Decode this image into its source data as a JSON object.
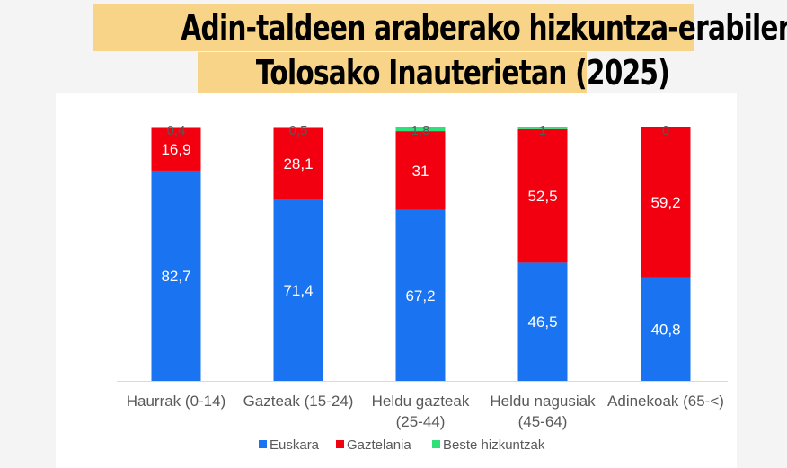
{
  "chart_data": {
    "type": "bar",
    "stacked": true,
    "title": [
      "Adin-taldeen araberako hizkuntza-erabilera",
      "Tolosako Inauterietan (2025)"
    ],
    "categories": [
      [
        "Haurrak (0-14)"
      ],
      [
        "Gazteak (15-24)"
      ],
      [
        "Heldu gazteak",
        "(25-44)"
      ],
      [
        "Heldu nagusiak",
        "(45-64)"
      ],
      [
        "Adinekoak (65-<)"
      ]
    ],
    "series": [
      {
        "name": "Euskara",
        "color": "#1a73f0",
        "values": [
          82.7,
          71.4,
          67.2,
          46.5,
          40.8
        ],
        "labels": [
          "82,7",
          "71,4",
          "67,2",
          "46,5",
          "40,8"
        ]
      },
      {
        "name": "Gaztelania",
        "color": "#f2000f",
        "values": [
          16.9,
          28.1,
          31,
          52.5,
          59.2
        ],
        "labels": [
          "16,9",
          "28,1",
          "31",
          "52,5",
          "59,2"
        ]
      },
      {
        "name": "Beste hizkuntzak",
        "color": "#2ee07a",
        "values": [
          0.4,
          0.5,
          1.8,
          1,
          0
        ],
        "labels": [
          "0,4",
          "0,5",
          "1,8",
          "1",
          "0"
        ]
      }
    ],
    "ylim": [
      0,
      100
    ],
    "legend": "bottom",
    "grid": false
  }
}
